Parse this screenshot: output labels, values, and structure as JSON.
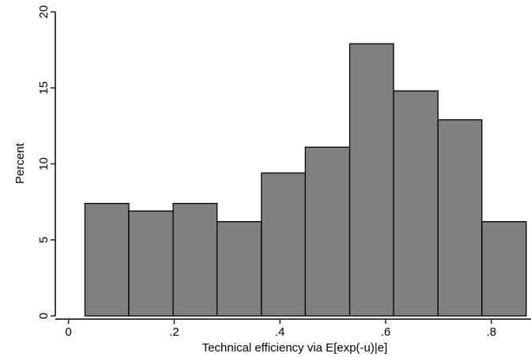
{
  "chart_data": {
    "type": "bar",
    "subtype": "histogram",
    "xlabel": "Technical efficiency via E[exp(-u)|e]",
    "ylabel": "Percent",
    "xlim": [
      -0.025,
      0.875
    ],
    "ylim": [
      0,
      20
    ],
    "x_ticks": [
      0,
      0.2,
      0.4,
      0.6,
      0.8
    ],
    "x_tick_labels": [
      "0",
      ".2",
      ".4",
      ".6",
      ".8"
    ],
    "y_ticks": [
      0,
      5,
      10,
      15,
      20
    ],
    "y_tick_labels": [
      "0",
      "5",
      "10",
      "15",
      "20"
    ],
    "bins": [
      {
        "x0": 0.031,
        "x1": 0.114,
        "value": 7.4
      },
      {
        "x0": 0.114,
        "x1": 0.198,
        "value": 6.9
      },
      {
        "x0": 0.198,
        "x1": 0.281,
        "value": 7.4
      },
      {
        "x0": 0.281,
        "x1": 0.365,
        "value": 6.2
      },
      {
        "x0": 0.365,
        "x1": 0.448,
        "value": 9.4
      },
      {
        "x0": 0.448,
        "x1": 0.532,
        "value": 11.1
      },
      {
        "x0": 0.532,
        "x1": 0.615,
        "value": 17.9
      },
      {
        "x0": 0.615,
        "x1": 0.699,
        "value": 14.8
      },
      {
        "x0": 0.699,
        "x1": 0.782,
        "value": 12.9
      },
      {
        "x0": 0.782,
        "x1": 0.866,
        "value": 6.2
      }
    ],
    "bar_color": "#808080",
    "bar_edge_color": "#000000",
    "grid": false
  }
}
